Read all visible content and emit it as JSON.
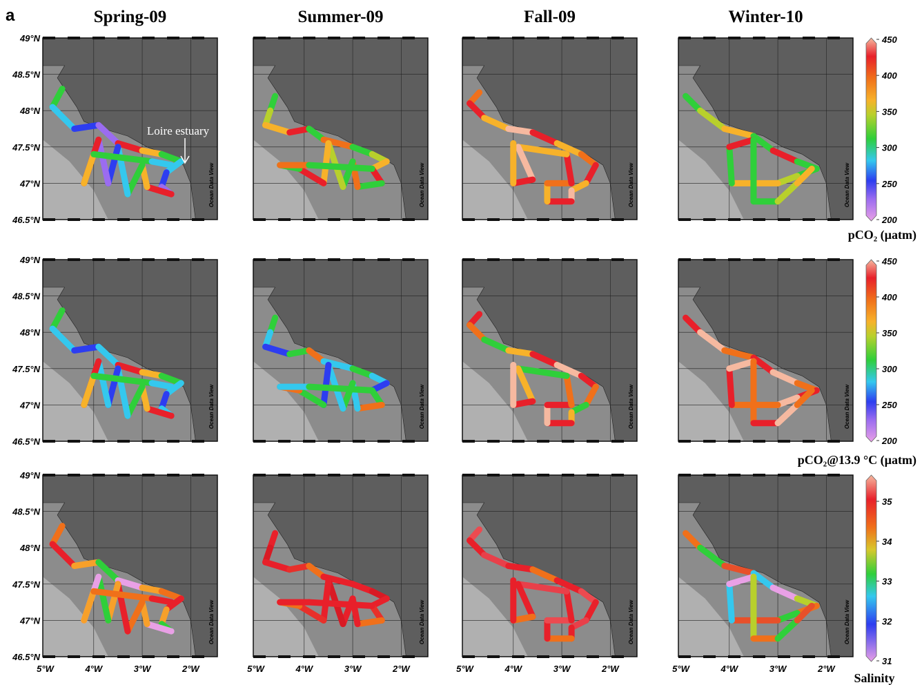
{
  "panel_label": "a",
  "columns": [
    "Spring-09",
    "Summer-09",
    "Fall-09",
    "Winter-10"
  ],
  "lat_labels": [
    "49°N",
    "48.5°N",
    "48°N",
    "47.5°N",
    "47°N",
    "46.5°N"
  ],
  "lon_labels": [
    "5°W",
    "4°W",
    "3°W",
    "2°W"
  ],
  "annotation": "Loire estuary",
  "watermark": "Ocean Data View",
  "colorbars": [
    {
      "label": "pCO₂ (µatm)",
      "ticks": [
        200,
        250,
        300,
        350,
        400,
        450
      ]
    },
    {
      "label": "pCO₂@13.9 °C (µatm)",
      "ticks": [
        200,
        250,
        300,
        350,
        400,
        450
      ]
    },
    {
      "label": "Salinity",
      "ticks": [
        31,
        32,
        33,
        34,
        35
      ]
    }
  ]
}
